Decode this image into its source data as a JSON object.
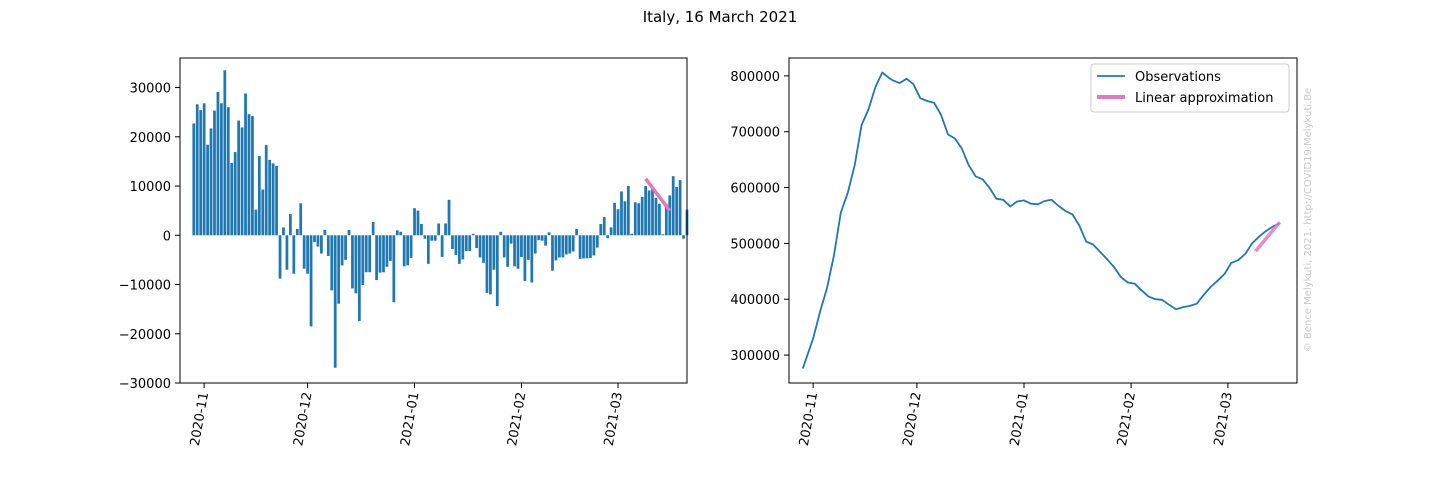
{
  "figure": {
    "title": "Italy, 16 March 2021",
    "watermark": "© Bence Melykuti, 2021. http://COVID19.Melykuti.Be"
  },
  "colors": {
    "bar": "#1f77b4",
    "observations": "#1f77b4",
    "linear": "#e377c2",
    "watermark": "#c8c8c8"
  },
  "chart_data": [
    {
      "type": "bar",
      "title": "",
      "xlabel": "",
      "ylabel": "",
      "x_ticks": [
        "2020-11",
        "2020-12",
        "2021-01",
        "2021-02",
        "2021-03"
      ],
      "y_ticks": [
        -30000,
        -20000,
        -10000,
        0,
        10000,
        20000,
        30000
      ],
      "y_tick_labels": [
        "−30000",
        "−20000",
        "−10000",
        "0",
        "10000",
        "20000",
        "30000"
      ],
      "xlim": [
        "2020-10-25",
        "2021-03-21"
      ],
      "ylim": [
        -30000,
        36000
      ],
      "dates_start": "2020-10-29",
      "values": [
        22700,
        26600,
        25400,
        26800,
        18400,
        21700,
        25300,
        29100,
        26800,
        33500,
        26000,
        14700,
        16900,
        23300,
        21900,
        28800,
        24600,
        24200,
        5200,
        16100,
        9300,
        18300,
        15300,
        14600,
        14100,
        -8800,
        1600,
        -7000,
        4300,
        -7800,
        1300,
        6500,
        -6800,
        -7800,
        -18500,
        -1400,
        -2300,
        -3700,
        1100,
        -4200,
        -11200,
        -26900,
        -13900,
        -6100,
        -5000,
        1100,
        -10800,
        -11800,
        -17400,
        -10100,
        -7500,
        -7500,
        2700,
        -9100,
        -7600,
        -7500,
        -6400,
        -5200,
        -13600,
        1000,
        700,
        -6300,
        -6100,
        -4600,
        5500,
        5000,
        2300,
        -700,
        -5800,
        -1100,
        -1100,
        2400,
        -4400,
        2400,
        7200,
        -2800,
        -4000,
        -5800,
        -4900,
        -3200,
        -3200,
        300,
        -2600,
        -4500,
        -5600,
        -11700,
        -12000,
        -7000,
        -14400,
        700,
        -4500,
        -6400,
        -1700,
        -6300,
        -6800,
        -4400,
        -9300,
        -5000,
        -9600,
        -3700,
        -1000,
        -1100,
        -2100,
        600,
        -7200,
        -5100,
        -4500,
        -4500,
        -3900,
        -3700,
        -3300,
        1300,
        -4800,
        -4700,
        -4700,
        -4600,
        -4100,
        -2500,
        2300,
        3700,
        -600,
        1600,
        6600,
        5300,
        8900,
        6900,
        10000,
        300,
        6700,
        6500,
        7800,
        10000,
        9100,
        9500,
        7600,
        6400,
        200,
        6400,
        8100,
        12000,
        9800,
        11200,
        -700,
        5200
      ],
      "linear_approximation": {
        "name": "Linear approximation",
        "x": [
          "2021-03-09",
          "2021-03-16"
        ],
        "y": [
          11500,
          5000
        ]
      }
    },
    {
      "type": "line",
      "title": "",
      "xlabel": "",
      "ylabel": "",
      "x_ticks": [
        "2020-11",
        "2020-12",
        "2021-01",
        "2021-02",
        "2021-03"
      ],
      "y_ticks": [
        300000,
        400000,
        500000,
        600000,
        700000,
        800000
      ],
      "y_tick_labels": [
        "300000",
        "400000",
        "500000",
        "600000",
        "700000",
        "800000"
      ],
      "xlim": [
        "2020-10-25",
        "2021-03-21"
      ],
      "ylim": [
        250000,
        832000
      ],
      "legend_position": "top-right",
      "series": [
        {
          "name": "Observations",
          "x": [
            "2020-10-29",
            "2020-11-01",
            "2020-11-03",
            "2020-11-05",
            "2020-11-07",
            "2020-11-09",
            "2020-11-11",
            "2020-11-13",
            "2020-11-15",
            "2020-11-17",
            "2020-11-19",
            "2020-11-21",
            "2020-11-23",
            "2020-11-24",
            "2020-11-26",
            "2020-11-28",
            "2020-11-30",
            "2020-12-02",
            "2020-12-04",
            "2020-12-06",
            "2020-12-08",
            "2020-12-10",
            "2020-12-12",
            "2020-12-14",
            "2020-12-16",
            "2020-12-18",
            "2020-12-20",
            "2020-12-22",
            "2020-12-24",
            "2020-12-26",
            "2020-12-28",
            "2020-12-30",
            "2021-01-01",
            "2021-01-03",
            "2021-01-05",
            "2021-01-07",
            "2021-01-09",
            "2021-01-11",
            "2021-01-13",
            "2021-01-15",
            "2021-01-17",
            "2021-01-19",
            "2021-01-21",
            "2021-01-23",
            "2021-01-25",
            "2021-01-27",
            "2021-01-29",
            "2021-01-31",
            "2021-02-02",
            "2021-02-04",
            "2021-02-06",
            "2021-02-08",
            "2021-02-10",
            "2021-02-12",
            "2021-02-14",
            "2021-02-16",
            "2021-02-18",
            "2021-02-20",
            "2021-02-22",
            "2021-02-24",
            "2021-02-26",
            "2021-02-28",
            "2021-03-02",
            "2021-03-04",
            "2021-03-06",
            "2021-03-08",
            "2021-03-10",
            "2021-03-12",
            "2021-03-14",
            "2021-03-16"
          ],
          "y": [
            276000,
            330000,
            378000,
            420000,
            478000,
            555000,
            590000,
            640000,
            712000,
            740000,
            780000,
            806000,
            796000,
            792000,
            787000,
            795000,
            785000,
            760000,
            755000,
            752000,
            730000,
            695000,
            688000,
            670000,
            640000,
            620000,
            615000,
            600000,
            580000,
            578000,
            566000,
            575000,
            577000,
            571000,
            570000,
            576000,
            578000,
            567000,
            558000,
            552000,
            532000,
            503000,
            498000,
            485000,
            472000,
            458000,
            440000,
            430000,
            428000,
            416000,
            405000,
            400000,
            399000,
            390000,
            382000,
            386000,
            388000,
            392000,
            408000,
            422000,
            433000,
            445000,
            465000,
            470000,
            481000,
            500000,
            512000,
            522000,
            530000,
            536000
          ]
        },
        {
          "name": "Linear approximation",
          "x": [
            "2021-03-09",
            "2021-03-16"
          ],
          "y": [
            486000,
            538000
          ]
        }
      ]
    }
  ]
}
